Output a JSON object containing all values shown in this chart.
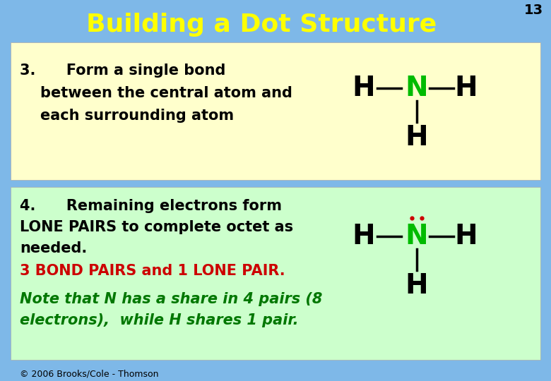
{
  "title": "Building a Dot Structure",
  "title_color": "#FFFF00",
  "title_fontsize": 26,
  "slide_number": "13",
  "bg_color": "#7EB8E8",
  "box1_color": "#FFFFCC",
  "box2_color": "#CCFFCC",
  "step3_line1": "3.      Form a single bond",
  "step3_line2": "    between the central atom and",
  "step3_line3": "    each surrounding atom",
  "step4_line1": "4.      Remaining electrons form",
  "step4_line2": "LONE PAIRS to complete octet as",
  "step4_line3": "needed.",
  "step4_red": "3 BOND PAIRS and 1 LONE PAIR.",
  "step4_green1": "Note that N has a share in 4 pairs (8",
  "step4_green2": "electrons),  while H shares 1 pair.",
  "copyright": "© 2006 Brooks/Cole - Thomson",
  "black": "#000000",
  "green": "#00BB00",
  "red": "#CC0000",
  "dark_green": "#007700",
  "lone_pair_color": "#CC0000",
  "text_fontsize": 15,
  "mol_fontsize": 28
}
